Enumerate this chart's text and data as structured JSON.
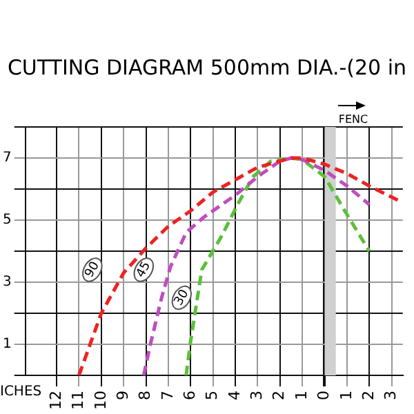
{
  "chart_data": {
    "type": "line",
    "title": "CUTTING DIAGRAM 500mm DIA.-(20 in",
    "xlabel": "ICHES",
    "xlim": [
      -13.4,
      3.5
    ],
    "ylim": [
      0,
      8
    ],
    "xticks": [
      {
        "value": -12,
        "label": "12"
      },
      {
        "value": -11,
        "label": "11"
      },
      {
        "value": -10,
        "label": "10"
      },
      {
        "value": -9,
        "label": "9"
      },
      {
        "value": -8,
        "label": "8"
      },
      {
        "value": -7,
        "label": "7"
      },
      {
        "value": -6,
        "label": "6"
      },
      {
        "value": -5,
        "label": "5"
      },
      {
        "value": -4,
        "label": "4"
      },
      {
        "value": -3,
        "label": "3"
      },
      {
        "value": -2,
        "label": "2"
      },
      {
        "value": -1,
        "label": "1"
      },
      {
        "value": 0,
        "label": "0"
      },
      {
        "value": 1,
        "label": "1"
      },
      {
        "value": 2,
        "label": "2"
      },
      {
        "value": 3,
        "label": "3"
      }
    ],
    "yticks": [
      {
        "value": 0,
        "label": null
      },
      1,
      {
        "value": 2,
        "label": null
      },
      3,
      {
        "value": 4,
        "label": null
      },
      5,
      {
        "value": 6,
        "label": null
      },
      7,
      {
        "value": 8,
        "label": null
      }
    ],
    "grid": true,
    "marker": "none",
    "line_style": "dashed",
    "series": [
      {
        "color": "#ee2222",
        "x": [
          -11,
          -10.5,
          -10,
          -9,
          -8,
          -7,
          -6,
          -5,
          -4,
          -3,
          -2,
          -1.5,
          -1,
          0,
          1,
          2,
          3.4
        ],
        "values": [
          0,
          1,
          2,
          3.3,
          4.1,
          4.8,
          5.3,
          5.9,
          6.3,
          6.7,
          6.9,
          7,
          7,
          6.8,
          6.5,
          6.1,
          5.6
        ]
      },
      {
        "color": "#c04cc0",
        "x": [
          -8.1,
          -7.8,
          -7.3,
          -6.9,
          -6.2,
          -5.4,
          -4,
          -3,
          -2,
          -1.5,
          -1,
          0,
          1,
          2
        ],
        "values": [
          0,
          1,
          2.5,
          3.5,
          4.6,
          5.1,
          5.8,
          6.4,
          6.9,
          7,
          6.95,
          6.6,
          6.1,
          5.5
        ]
      },
      {
        "color": "#5cbf3a",
        "x": [
          -6.2,
          -6,
          -5.5,
          -4.6,
          -3.9,
          -3.2,
          -2.4,
          -1.5,
          -1,
          0,
          0.9,
          2
        ],
        "values": [
          0,
          1.1,
          3.4,
          4.5,
          5.5,
          6.4,
          6.9,
          7,
          6.95,
          6.4,
          5.3,
          4
        ]
      }
    ],
    "bands": [
      {
        "axis": "x",
        "from": 0,
        "to": 0.5,
        "label": "FENC",
        "color": "#d0d0d0"
      }
    ],
    "annotations": [
      {
        "text": "90",
        "x": -10.4,
        "y": 3.4
      },
      {
        "text": "45",
        "x": -8.1,
        "y": 3.4
      },
      {
        "text": "30",
        "x": -6.4,
        "y": 2.5
      }
    ]
  }
}
